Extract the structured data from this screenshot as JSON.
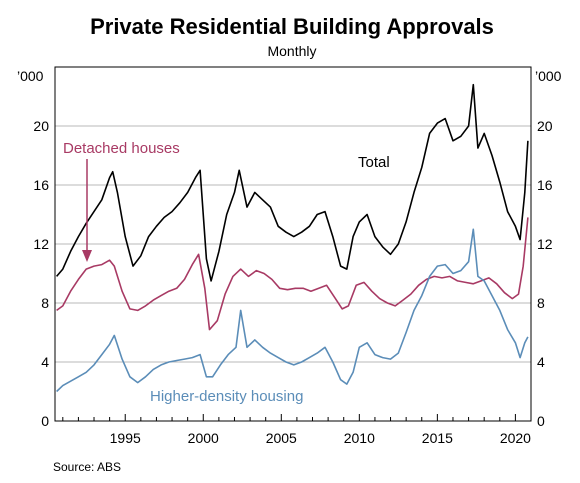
{
  "chart_data": {
    "type": "line",
    "title": "Private Residential Building Approvals",
    "subtitle": "Monthly",
    "unit_left": "’000",
    "unit_right": "’000",
    "source": "Source:   ABS",
    "xlim": [
      1990.5,
      2021.0
    ],
    "ylim": [
      0,
      24
    ],
    "x_ticks": [
      1995,
      2000,
      2005,
      2010,
      2015,
      2020
    ],
    "x_tick_labels": [
      "1995",
      "2000",
      "2005",
      "2010",
      "2015",
      "2020"
    ],
    "y_ticks": [
      0,
      4,
      8,
      12,
      16,
      20
    ],
    "y_tick_labels": [
      "0",
      "4",
      "8",
      "12",
      "16",
      "20"
    ],
    "grid": "horizontal",
    "annotations": {
      "total": "Total",
      "detached": "Detached houses",
      "higher_density": "Higher-density housing"
    },
    "series": [
      {
        "name": "Total",
        "color": "#000000",
        "points": [
          [
            1990.6,
            9.8
          ],
          [
            1991.0,
            10.3
          ],
          [
            1991.5,
            11.5
          ],
          [
            1992.0,
            12.5
          ],
          [
            1992.5,
            13.4
          ],
          [
            1993.0,
            14.2
          ],
          [
            1993.5,
            15.0
          ],
          [
            1994.0,
            16.5
          ],
          [
            1994.2,
            16.9
          ],
          [
            1994.5,
            15.5
          ],
          [
            1995.0,
            12.5
          ],
          [
            1995.5,
            10.5
          ],
          [
            1996.0,
            11.2
          ],
          [
            1996.5,
            12.5
          ],
          [
            1997.0,
            13.2
          ],
          [
            1997.5,
            13.8
          ],
          [
            1998.0,
            14.2
          ],
          [
            1998.5,
            14.8
          ],
          [
            1999.0,
            15.5
          ],
          [
            1999.5,
            16.5
          ],
          [
            1999.8,
            17.0
          ],
          [
            2000.2,
            11.0
          ],
          [
            2000.5,
            9.5
          ],
          [
            2001.0,
            11.5
          ],
          [
            2001.5,
            14.0
          ],
          [
            2002.0,
            15.5
          ],
          [
            2002.3,
            17.0
          ],
          [
            2002.8,
            14.5
          ],
          [
            2003.3,
            15.5
          ],
          [
            2003.8,
            15.0
          ],
          [
            2004.3,
            14.5
          ],
          [
            2004.8,
            13.2
          ],
          [
            2005.3,
            12.8
          ],
          [
            2005.8,
            12.5
          ],
          [
            2006.3,
            12.8
          ],
          [
            2006.8,
            13.2
          ],
          [
            2007.3,
            14.0
          ],
          [
            2007.8,
            14.2
          ],
          [
            2008.3,
            12.5
          ],
          [
            2008.8,
            10.5
          ],
          [
            2009.2,
            10.3
          ],
          [
            2009.6,
            12.5
          ],
          [
            2010.0,
            13.5
          ],
          [
            2010.5,
            14.0
          ],
          [
            2011.0,
            12.5
          ],
          [
            2011.5,
            11.8
          ],
          [
            2012.0,
            11.3
          ],
          [
            2012.5,
            12.0
          ],
          [
            2013.0,
            13.5
          ],
          [
            2013.5,
            15.5
          ],
          [
            2014.0,
            17.2
          ],
          [
            2014.5,
            19.5
          ],
          [
            2015.0,
            20.2
          ],
          [
            2015.5,
            20.5
          ],
          [
            2016.0,
            19.0
          ],
          [
            2016.5,
            19.3
          ],
          [
            2017.0,
            20.0
          ],
          [
            2017.3,
            22.8
          ],
          [
            2017.6,
            18.5
          ],
          [
            2018.0,
            19.5
          ],
          [
            2018.5,
            18.0
          ],
          [
            2019.0,
            16.2
          ],
          [
            2019.5,
            14.2
          ],
          [
            2020.0,
            13.2
          ],
          [
            2020.3,
            12.3
          ],
          [
            2020.6,
            15.5
          ],
          [
            2020.8,
            19.0
          ]
        ]
      },
      {
        "name": "Detached houses",
        "color": "#a83a64",
        "points": [
          [
            1990.6,
            7.5
          ],
          [
            1991.0,
            7.8
          ],
          [
            1991.5,
            8.8
          ],
          [
            1992.0,
            9.6
          ],
          [
            1992.5,
            10.3
          ],
          [
            1993.0,
            10.5
          ],
          [
            1993.5,
            10.6
          ],
          [
            1994.0,
            10.9
          ],
          [
            1994.3,
            10.5
          ],
          [
            1994.8,
            8.8
          ],
          [
            1995.3,
            7.6
          ],
          [
            1995.8,
            7.5
          ],
          [
            1996.3,
            7.8
          ],
          [
            1996.8,
            8.2
          ],
          [
            1997.3,
            8.5
          ],
          [
            1997.8,
            8.8
          ],
          [
            1998.3,
            9.0
          ],
          [
            1998.8,
            9.6
          ],
          [
            1999.3,
            10.6
          ],
          [
            1999.7,
            11.3
          ],
          [
            2000.1,
            9.0
          ],
          [
            2000.4,
            6.2
          ],
          [
            2000.9,
            6.8
          ],
          [
            2001.4,
            8.6
          ],
          [
            2001.9,
            9.8
          ],
          [
            2002.4,
            10.3
          ],
          [
            2002.9,
            9.8
          ],
          [
            2003.4,
            10.2
          ],
          [
            2003.9,
            10.0
          ],
          [
            2004.4,
            9.6
          ],
          [
            2004.9,
            9.0
          ],
          [
            2005.4,
            8.9
          ],
          [
            2005.9,
            9.0
          ],
          [
            2006.4,
            9.0
          ],
          [
            2006.9,
            8.8
          ],
          [
            2007.4,
            9.0
          ],
          [
            2007.9,
            9.2
          ],
          [
            2008.4,
            8.4
          ],
          [
            2008.9,
            7.6
          ],
          [
            2009.3,
            7.8
          ],
          [
            2009.8,
            9.2
          ],
          [
            2010.3,
            9.4
          ],
          [
            2010.8,
            8.8
          ],
          [
            2011.3,
            8.3
          ],
          [
            2011.8,
            8.0
          ],
          [
            2012.3,
            7.8
          ],
          [
            2012.8,
            8.2
          ],
          [
            2013.3,
            8.6
          ],
          [
            2013.8,
            9.2
          ],
          [
            2014.3,
            9.6
          ],
          [
            2014.8,
            9.8
          ],
          [
            2015.3,
            9.7
          ],
          [
            2015.8,
            9.8
          ],
          [
            2016.3,
            9.5
          ],
          [
            2016.8,
            9.4
          ],
          [
            2017.3,
            9.3
          ],
          [
            2017.8,
            9.5
          ],
          [
            2018.3,
            9.7
          ],
          [
            2018.8,
            9.3
          ],
          [
            2019.3,
            8.7
          ],
          [
            2019.8,
            8.3
          ],
          [
            2020.2,
            8.6
          ],
          [
            2020.5,
            10.5
          ],
          [
            2020.8,
            13.8
          ]
        ]
      },
      {
        "name": "Higher-density housing",
        "color": "#5b8db8",
        "points": [
          [
            1990.6,
            2.0
          ],
          [
            1991.0,
            2.4
          ],
          [
            1991.5,
            2.7
          ],
          [
            1992.0,
            3.0
          ],
          [
            1992.5,
            3.3
          ],
          [
            1993.0,
            3.8
          ],
          [
            1993.5,
            4.5
          ],
          [
            1994.0,
            5.2
          ],
          [
            1994.3,
            5.8
          ],
          [
            1994.8,
            4.2
          ],
          [
            1995.3,
            3.0
          ],
          [
            1995.8,
            2.6
          ],
          [
            1996.3,
            3.0
          ],
          [
            1996.8,
            3.5
          ],
          [
            1997.3,
            3.8
          ],
          [
            1997.8,
            4.0
          ],
          [
            1998.3,
            4.1
          ],
          [
            1998.8,
            4.2
          ],
          [
            1999.3,
            4.3
          ],
          [
            1999.8,
            4.5
          ],
          [
            2000.2,
            3.0
          ],
          [
            2000.6,
            3.0
          ],
          [
            2001.1,
            3.8
          ],
          [
            2001.6,
            4.5
          ],
          [
            2002.1,
            5.0
          ],
          [
            2002.4,
            7.5
          ],
          [
            2002.8,
            5.0
          ],
          [
            2003.3,
            5.5
          ],
          [
            2003.8,
            5.0
          ],
          [
            2004.3,
            4.6
          ],
          [
            2004.8,
            4.3
          ],
          [
            2005.3,
            4.0
          ],
          [
            2005.8,
            3.8
          ],
          [
            2006.3,
            4.0
          ],
          [
            2006.8,
            4.3
          ],
          [
            2007.3,
            4.6
          ],
          [
            2007.8,
            5.0
          ],
          [
            2008.3,
            4.0
          ],
          [
            2008.8,
            2.8
          ],
          [
            2009.2,
            2.5
          ],
          [
            2009.6,
            3.3
          ],
          [
            2010.0,
            5.0
          ],
          [
            2010.5,
            5.3
          ],
          [
            2011.0,
            4.5
          ],
          [
            2011.5,
            4.3
          ],
          [
            2012.0,
            4.2
          ],
          [
            2012.5,
            4.6
          ],
          [
            2013.0,
            6.0
          ],
          [
            2013.5,
            7.5
          ],
          [
            2014.0,
            8.5
          ],
          [
            2014.5,
            9.8
          ],
          [
            2015.0,
            10.5
          ],
          [
            2015.5,
            10.6
          ],
          [
            2016.0,
            10.0
          ],
          [
            2016.5,
            10.2
          ],
          [
            2017.0,
            10.8
          ],
          [
            2017.3,
            13.0
          ],
          [
            2017.6,
            9.8
          ],
          [
            2018.0,
            9.5
          ],
          [
            2018.5,
            8.5
          ],
          [
            2019.0,
            7.5
          ],
          [
            2019.5,
            6.2
          ],
          [
            2020.0,
            5.3
          ],
          [
            2020.3,
            4.3
          ],
          [
            2020.6,
            5.3
          ],
          [
            2020.8,
            5.7
          ]
        ]
      }
    ]
  }
}
